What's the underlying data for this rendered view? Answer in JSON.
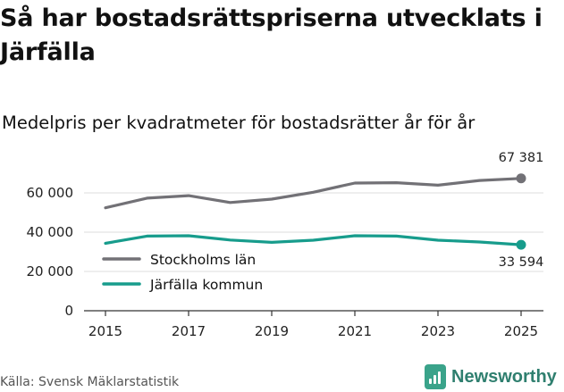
{
  "header": {
    "title": "Så har bostadsrättspriserna utvecklats i Järfälla",
    "subtitle": "Medelpris per kvadratmeter för bostadsrätter år för år"
  },
  "footer": {
    "source": "Källa: Svensk Mäklarstatistik",
    "brand": "Newsworthy"
  },
  "colors": {
    "stockholm": "#727176",
    "jarfalla": "#179c8c",
    "grid": "#dcdcdc",
    "axis": "#333333"
  },
  "chart_data": {
    "type": "line",
    "title": "Så har bostadsrättspriserna utvecklats i Järfälla",
    "subtitle": "Medelpris per kvadratmeter för bostadsrätter år för år",
    "x": [
      2015,
      2016,
      2017,
      2018,
      2019,
      2020,
      2021,
      2022,
      2023,
      2024,
      2025
    ],
    "x_ticks": [
      "2015",
      "2017",
      "2019",
      "2021",
      "2023",
      "2025"
    ],
    "y_ticks": [
      "0",
      "20 000",
      "40 000",
      "60 000"
    ],
    "xlim": [
      2015,
      2025
    ],
    "ylim": [
      0,
      70000
    ],
    "grid": true,
    "legend_position": "bottom-left",
    "series": [
      {
        "name": "Stockholms län",
        "color": "#727176",
        "values": [
          52400,
          57300,
          58600,
          55100,
          56800,
          60300,
          65000,
          65200,
          63900,
          66300,
          67381
        ],
        "end_label": "67 381"
      },
      {
        "name": "Järfälla kommun",
        "color": "#179c8c",
        "values": [
          34300,
          38000,
          38200,
          36000,
          34800,
          35900,
          38200,
          38000,
          35900,
          35000,
          33594
        ],
        "end_label": "33 594"
      }
    ]
  }
}
